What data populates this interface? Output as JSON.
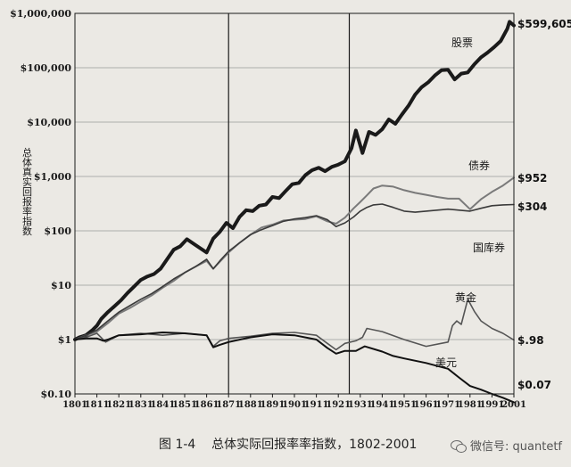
{
  "caption": {
    "figure_no": "图 1-4",
    "title": "总体实际回报率率指数，1802-2001"
  },
  "watermark": {
    "icon": "wechat-icon",
    "text": "微信号: quantetf"
  },
  "chart_data": {
    "type": "line",
    "title": "",
    "xlabel": "",
    "ylabel": "总体真实回报率指数",
    "yscale": "log",
    "ylim": [
      0.1,
      1000000
    ],
    "xlim": [
      1801,
      2001
    ],
    "x_ticks": [
      "1801",
      "1811",
      "1821",
      "1831",
      "1841",
      "1851",
      "1861",
      "1871",
      "1881",
      "1891",
      "1901",
      "1911",
      "1921",
      "1931",
      "1941",
      "1951",
      "1961",
      "1971",
      "1981",
      "1991",
      "2001"
    ],
    "y_ticks": [
      {
        "value": 0.1,
        "label": "$0.10"
      },
      {
        "value": 1,
        "label": "$1"
      },
      {
        "value": 10,
        "label": "$10"
      },
      {
        "value": 100,
        "label": "$100"
      },
      {
        "value": 1000,
        "label": "$1,000"
      },
      {
        "value": 10000,
        "label": "$10,000"
      },
      {
        "value": 100000,
        "label": "$100,000"
      },
      {
        "value": 1000000,
        "label": "$1,000,000"
      }
    ],
    "vertical_lines": [
      1871,
      1926
    ],
    "grid": true,
    "series": [
      {
        "name": "股票",
        "end_label": "$599,605",
        "color": "#1a1a1a",
        "weight": "heavy",
        "x": [
          1801,
          1803,
          1806,
          1809,
          1811,
          1813,
          1816,
          1819,
          1822,
          1825,
          1828,
          1831,
          1834,
          1837,
          1840,
          1843,
          1846,
          1849,
          1852,
          1855,
          1858,
          1861,
          1864,
          1867,
          1870,
          1873,
          1876,
          1879,
          1882,
          1885,
          1888,
          1891,
          1894,
          1897,
          1900,
          1903,
          1906,
          1909,
          1912,
          1915,
          1918,
          1921,
          1924,
          1927,
          1929,
          1932,
          1935,
          1938,
          1941,
          1944,
          1947,
          1950,
          1953,
          1956,
          1959,
          1962,
          1965,
          1968,
          1971,
          1974,
          1977,
          1980,
          1983,
          1986,
          1989,
          1992,
          1995,
          1998,
          1999,
          2001
        ],
        "y": [
          1,
          1.1,
          1.2,
          1.5,
          1.8,
          2.4,
          3.2,
          4.1,
          5.3,
          7.2,
          9.5,
          12.5,
          14.5,
          16,
          20,
          30,
          45,
          52,
          70,
          58,
          48,
          40,
          72,
          96,
          140,
          112,
          180,
          240,
          230,
          290,
          305,
          420,
          400,
          540,
          720,
          760,
          1060,
          1300,
          1450,
          1250,
          1500,
          1650,
          1900,
          3300,
          7000,
          2700,
          6600,
          5800,
          7400,
          11200,
          9300,
          13800,
          20000,
          32000,
          44000,
          54000,
          72000,
          90000,
          92000,
          61000,
          78000,
          82000,
          116000,
          155000,
          190000,
          240000,
          310000,
          520000,
          700000,
          599605
        ]
      },
      {
        "name": "债券",
        "end_label": "$952",
        "color": "#7a7a7a",
        "weight": "medium",
        "x": [
          1801,
          1806,
          1811,
          1816,
          1821,
          1826,
          1831,
          1836,
          1841,
          1846,
          1851,
          1856,
          1861,
          1864,
          1867,
          1871,
          1876,
          1881,
          1886,
          1891,
          1896,
          1901,
          1906,
          1911,
          1916,
          1920,
          1924,
          1928,
          1931,
          1934,
          1937,
          1941,
          1946,
          1951,
          1956,
          1961,
          1966,
          1971,
          1976,
          1981,
          1986,
          1991,
          1996,
          2001
        ],
        "y": [
          1,
          1.2,
          1.4,
          2,
          3,
          3.8,
          5,
          6.5,
          9,
          12,
          17,
          22,
          28,
          20,
          27,
          40,
          60,
          85,
          115,
          130,
          155,
          160,
          165,
          185,
          150,
          135,
          175,
          260,
          340,
          450,
          600,
          680,
          650,
          560,
          500,
          460,
          420,
          390,
          390,
          250,
          380,
          520,
          680,
          952
        ]
      },
      {
        "name": "国库券",
        "end_label": "$304",
        "color": "#3a3a3a",
        "weight": "light",
        "x": [
          1801,
          1806,
          1811,
          1816,
          1821,
          1826,
          1831,
          1836,
          1841,
          1846,
          1851,
          1856,
          1861,
          1864,
          1867,
          1871,
          1876,
          1881,
          1886,
          1891,
          1896,
          1901,
          1906,
          1911,
          1916,
          1920,
          1924,
          1928,
          1931,
          1934,
          1937,
          1941,
          1946,
          1951,
          1956,
          1961,
          1966,
          1971,
          1976,
          1981,
          1986,
          1991,
          1996,
          2001
        ],
        "y": [
          1,
          1.2,
          1.5,
          2.2,
          3.2,
          4.2,
          5.5,
          7,
          9.5,
          13,
          17,
          22,
          30,
          20,
          28,
          42,
          60,
          85,
          105,
          125,
          150,
          165,
          175,
          190,
          160,
          120,
          140,
          180,
          230,
          270,
          300,
          310,
          270,
          230,
          220,
          230,
          240,
          250,
          240,
          230,
          260,
          290,
          300,
          304
        ]
      },
      {
        "name": "黄金",
        "end_label": "$.98",
        "color": "#555555",
        "weight": "light",
        "x": [
          1801,
          1806,
          1811,
          1815,
          1821,
          1831,
          1841,
          1851,
          1861,
          1864,
          1867,
          1871,
          1881,
          1891,
          1901,
          1911,
          1916,
          1920,
          1924,
          1929,
          1932,
          1934,
          1941,
          1951,
          1961,
          1971,
          1973,
          1975,
          1977,
          1980,
          1983,
          1986,
          1991,
          1996,
          2001
        ],
        "y": [
          1,
          1.1,
          1.3,
          0.9,
          1.2,
          1.3,
          1.2,
          1.3,
          1.2,
          0.75,
          0.95,
          1.05,
          1.15,
          1.3,
          1.35,
          1.2,
          0.85,
          0.65,
          0.85,
          0.95,
          1.1,
          1.6,
          1.4,
          1.0,
          0.75,
          0.9,
          1.8,
          2.2,
          1.9,
          5.5,
          3.3,
          2.2,
          1.6,
          1.3,
          0.98
        ]
      },
      {
        "name": "美元",
        "end_label": "$0.07",
        "color": "#111111",
        "weight": "medium",
        "x": [
          1801,
          1806,
          1811,
          1814,
          1816,
          1821,
          1831,
          1841,
          1851,
          1861,
          1864,
          1867,
          1871,
          1881,
          1891,
          1901,
          1911,
          1916,
          1920,
          1924,
          1929,
          1933,
          1941,
          1946,
          1951,
          1961,
          1971,
          1976,
          1981,
          1986,
          1991,
          1996,
          2001
        ],
        "y": [
          1,
          1.05,
          1.05,
          0.95,
          1.0,
          1.2,
          1.25,
          1.35,
          1.3,
          1.2,
          0.72,
          0.8,
          0.9,
          1.1,
          1.25,
          1.2,
          1.0,
          0.7,
          0.55,
          0.62,
          0.62,
          0.75,
          0.6,
          0.5,
          0.45,
          0.37,
          0.29,
          0.2,
          0.14,
          0.12,
          0.1,
          0.085,
          0.07
        ]
      }
    ]
  }
}
